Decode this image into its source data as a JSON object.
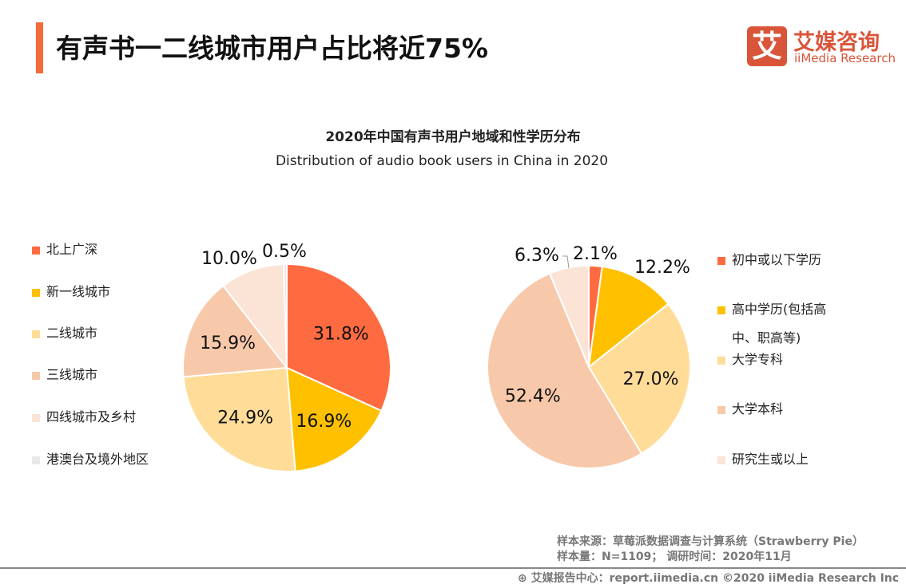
{
  "header": {
    "title": "有声书一二线城市用户占比将近75%",
    "logo_mark": "艾",
    "logo_cn": "艾媒咨询",
    "logo_en": "iiMedia Research"
  },
  "colors": {
    "accent": "#F26B3A",
    "brand": "#D9553A"
  },
  "chart_data": [
    {
      "type": "pie",
      "title": "2020年中国有声书用户地域和性学历分布",
      "subtitle": "Distribution of audio book users in China in 2020",
      "legend_position": "left",
      "categories": [
        "北上广深",
        "新一线城市",
        "二线城市",
        "三线城市",
        "四线城市及乡村",
        "港澳台及境外地区"
      ],
      "values": [
        31.8,
        16.9,
        24.9,
        15.9,
        10.0,
        0.5
      ],
      "labels": [
        "31.8%",
        "16.9%",
        "24.9%",
        "15.9%",
        "10.0%",
        "0.5%"
      ],
      "colors": [
        "#FF6B40",
        "#FFC000",
        "#FFDC98",
        "#F7C9AA",
        "#FBE3D6",
        "#E8E8E8"
      ]
    },
    {
      "type": "pie",
      "legend_position": "right",
      "categories": [
        "初中或以下学历",
        "高中学历(包括高中、职高等)",
        "大学专科",
        "大学本科",
        "研究生或以上"
      ],
      "legend_lines": [
        [
          "初中或以下学历"
        ],
        [
          "高中学历(包括高",
          "中、职高等)"
        ],
        [
          "大学专科"
        ],
        [
          "大学本科"
        ],
        [
          "研究生或以上"
        ]
      ],
      "values": [
        2.1,
        12.2,
        27.0,
        52.4,
        6.3
      ],
      "labels": [
        "2.1%",
        "12.2%",
        "27.0%",
        "52.4%",
        "6.3%"
      ],
      "colors": [
        "#FF6B40",
        "#FFC000",
        "#FFDC98",
        "#F7C9AA",
        "#FBE3D6"
      ]
    }
  ],
  "notes": {
    "source": "样本来源：草莓派数据调查与计算系统（Strawberry Pie）",
    "sample": "样本量：N=1109； 调研时间：2020年11月"
  },
  "footer": {
    "text": "艾媒报告中心：report.iimedia.cn   ©2020  iiMedia Research  Inc",
    "icon": "globe-icon"
  }
}
